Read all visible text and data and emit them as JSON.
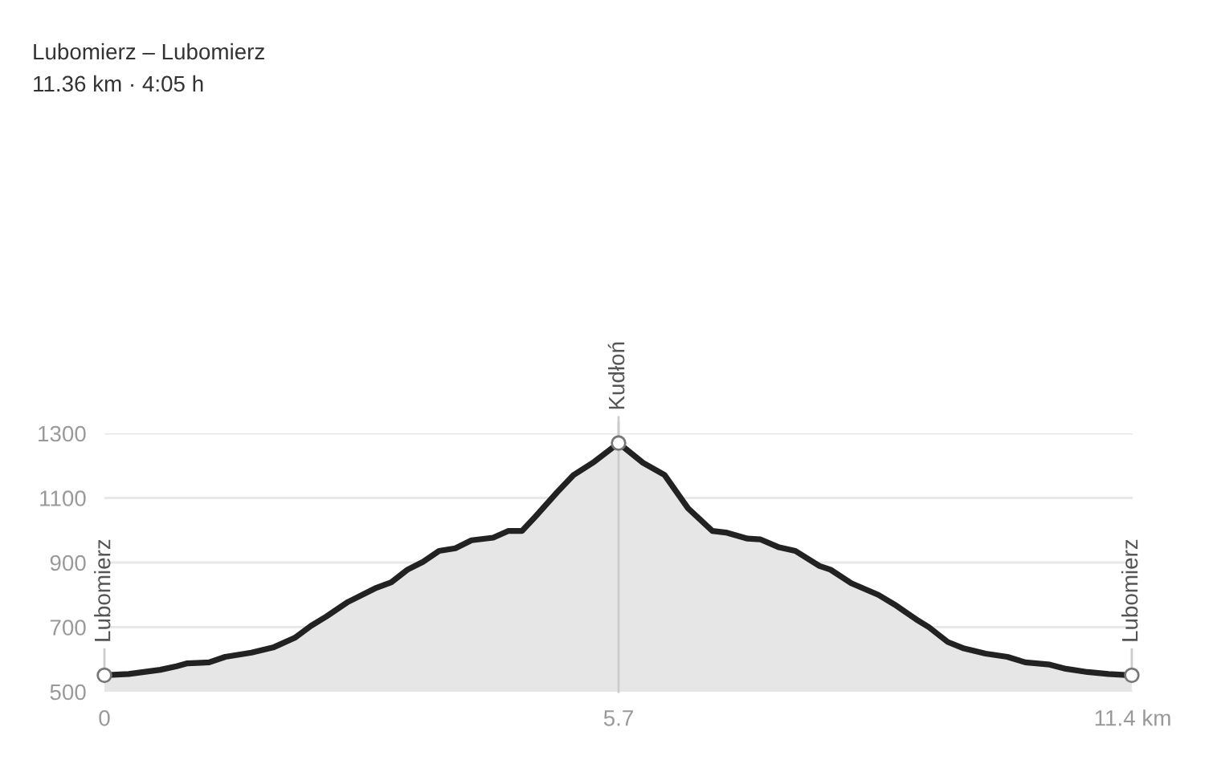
{
  "chart_data": {
    "type": "area",
    "title": "Lubomierz – Lubomierz",
    "subtitle": "11.36 km · 4:05 h",
    "x": [
      0,
      0.27,
      0.62,
      0.8,
      0.92,
      1.16,
      1.34,
      1.63,
      1.87,
      2.11,
      2.29,
      2.46,
      2.7,
      3.0,
      3.18,
      3.36,
      3.53,
      3.71,
      3.89,
      4.07,
      4.31,
      4.48,
      4.63,
      4.78,
      5.02,
      5.2,
      5.43,
      5.7,
      5.97,
      6.21,
      6.47,
      6.74,
      6.89,
      7.13,
      7.27,
      7.48,
      7.66,
      7.93,
      8.05,
      8.28,
      8.58,
      8.76,
      9.0,
      9.14,
      9.35,
      9.53,
      9.77,
      10.01,
      10.21,
      10.48,
      10.66,
      10.9,
      11.13,
      11.39
    ],
    "series": [
      {
        "color": "#222222",
        "values": [
          551,
          555,
          568,
          579,
          588,
          591,
          608,
          621,
          637,
          667,
          704,
          733,
          778,
          820,
          839,
          878,
          902,
          936,
          944,
          969,
          977,
          998,
          998,
          1043,
          1118,
          1171,
          1212,
          1270,
          1209,
          1171,
          1068,
          998,
          993,
          974,
          972,
          947,
          936,
          889,
          878,
          836,
          800,
          770,
          724,
          700,
          654,
          634,
          618,
          608,
          591,
          584,
          571,
          561,
          555,
          551
        ]
      }
    ],
    "xlim": [
      0,
      11.4
    ],
    "xticks": [
      0,
      5.7,
      {
        "value": 11.4,
        "label": "11.4 km"
      }
    ],
    "ylim": [
      500,
      1300
    ],
    "yticks": [
      500,
      700,
      900,
      1100,
      1300
    ],
    "grid": "y",
    "ref_lines": [
      {
        "axis": "x",
        "value": 5.7,
        "color": "#cccccc"
      }
    ],
    "annotations": [
      {
        "text": "Lubomierz",
        "x": 0,
        "y": 551
      },
      {
        "text": "Kudłoń",
        "x": 5.7,
        "y": 1270
      },
      {
        "text": "Lubomierz",
        "x": 11.39,
        "y": 551
      }
    ]
  }
}
